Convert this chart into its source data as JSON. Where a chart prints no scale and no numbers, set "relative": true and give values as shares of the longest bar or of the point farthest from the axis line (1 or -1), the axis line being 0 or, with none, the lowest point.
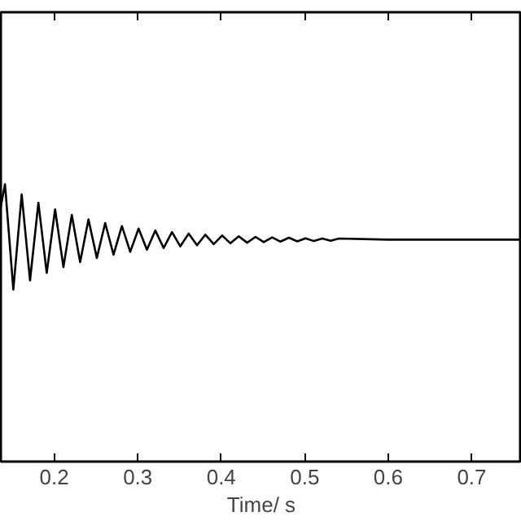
{
  "chart_data": {
    "type": "line",
    "xlabel": "Time/ s",
    "relative": true,
    "xlim": [
      0.136,
      0.76
    ],
    "xticks": [
      0.2,
      0.3,
      0.4,
      0.5,
      0.6,
      0.7
    ],
    "grid": false,
    "series": [
      {
        "color": "#000000",
        "x": [
          0.136,
          0.141,
          0.151,
          0.161,
          0.171,
          0.181,
          0.191,
          0.201,
          0.211,
          0.221,
          0.231,
          0.241,
          0.251,
          0.261,
          0.271,
          0.281,
          0.291,
          0.301,
          0.311,
          0.321,
          0.331,
          0.341,
          0.351,
          0.361,
          0.371,
          0.381,
          0.391,
          0.401,
          0.411,
          0.421,
          0.431,
          0.441,
          0.451,
          0.461,
          0.471,
          0.481,
          0.491,
          0.501,
          0.511,
          0.521,
          0.531,
          0.541,
          0.6,
          0.76
        ],
        "values": [
          0.92,
          1.0,
          0.62,
          0.963,
          0.653,
          0.933,
          0.68,
          0.909,
          0.701,
          0.889,
          0.719,
          0.873,
          0.734,
          0.86,
          0.746,
          0.849,
          0.756,
          0.84,
          0.764,
          0.833,
          0.77,
          0.827,
          0.776,
          0.822,
          0.78,
          0.818,
          0.784,
          0.815,
          0.787,
          0.812,
          0.789,
          0.81,
          0.791,
          0.808,
          0.793,
          0.807,
          0.794,
          0.805,
          0.795,
          0.804,
          0.796,
          0.804,
          0.8,
          0.8
        ]
      }
    ]
  }
}
